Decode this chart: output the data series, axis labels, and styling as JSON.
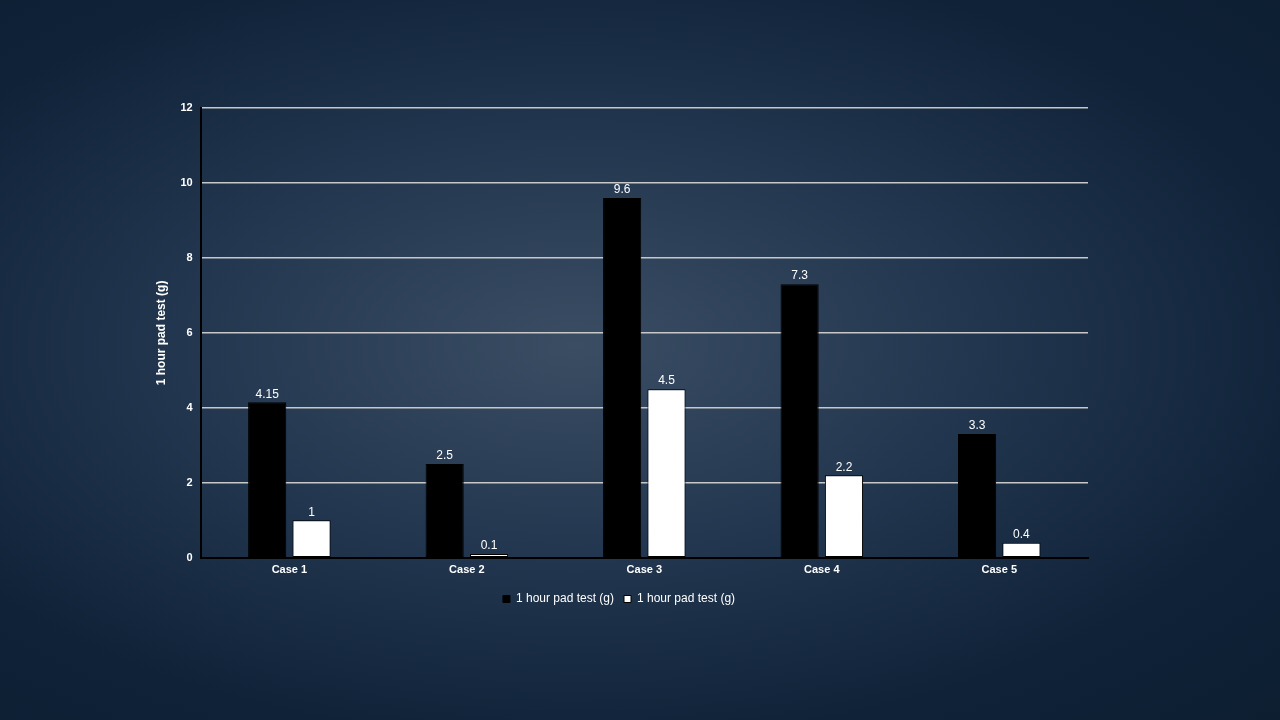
{
  "chart_data": {
    "type": "bar",
    "ylabel": "1 hour pad test (g)",
    "categories": [
      "Case 1",
      "Case 2",
      "Case 3",
      "Case 4",
      "Case 5"
    ],
    "series": [
      {
        "name": "1 hour pad test (g)",
        "color": "#000000",
        "values": [
          4.15,
          2.5,
          9.6,
          7.3,
          3.3
        ]
      },
      {
        "name": "1 hour pad test (g)",
        "color": "#ffffff",
        "values": [
          1,
          0.1,
          4.5,
          2.2,
          0.4
        ]
      }
    ],
    "ylim": [
      0,
      12
    ],
    "yticks": [
      0,
      2,
      4,
      6,
      8,
      10,
      12
    ],
    "grid": "y",
    "legend": "bottom",
    "data_labels": true
  }
}
